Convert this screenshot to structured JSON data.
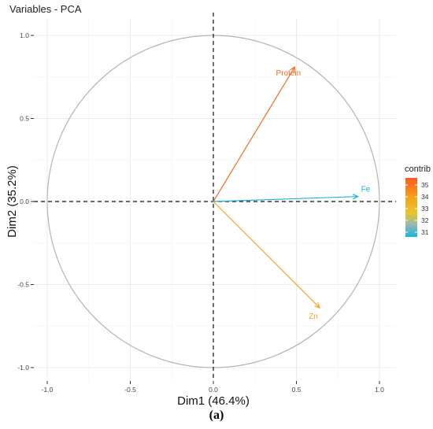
{
  "chart_data": {
    "type": "scatter",
    "title": "Variables - PCA",
    "xlabel": "Dim1 (46.4%)",
    "ylabel": "Dim2 (35.2%)",
    "xlim": [
      -1.0,
      1.0
    ],
    "ylim": [
      -1.0,
      1.0
    ],
    "x_ticks": [
      "-1.0",
      "-0.5",
      "0.0",
      "0.5",
      "1.0"
    ],
    "y_ticks": [
      "1.0",
      "0.5",
      "0.0",
      "-0.5",
      "-1.0"
    ],
    "grid": true,
    "legend": {
      "title": "contrib",
      "position": "right",
      "ticks": [
        "35",
        "34",
        "33",
        "32",
        "31"
      ],
      "range": [
        30.6,
        35.6
      ]
    },
    "variables": [
      {
        "label": "Protein",
        "x": 0.49,
        "y": 0.81,
        "contrib": 35.4,
        "color": "#f26a23"
      },
      {
        "label": "Fe",
        "x": 0.87,
        "y": 0.03,
        "contrib": 31.0,
        "color": "#1fb4d6"
      },
      {
        "label": "Zn",
        "x": 0.64,
        "y": -0.64,
        "contrib": 33.6,
        "color": "#f4a51c"
      }
    ]
  },
  "caption": "(a)"
}
